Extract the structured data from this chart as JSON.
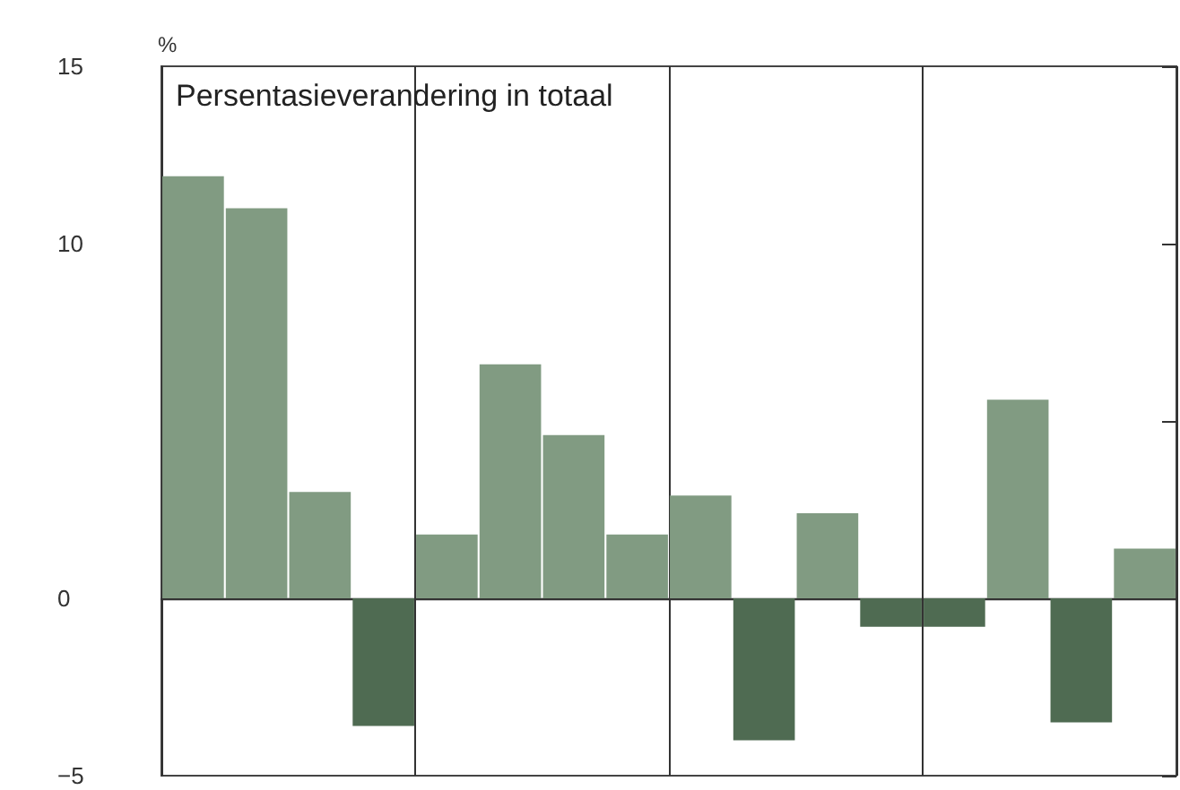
{
  "chart_data": {
    "type": "bar",
    "title": "Persentasieverandering in totaal",
    "ylabel": "%",
    "categories": [
      null,
      null,
      null,
      null,
      null,
      null,
      null,
      null,
      null,
      null,
      null,
      null,
      null,
      null,
      null,
      null
    ],
    "values": [
      11.9,
      11.0,
      3.0,
      -3.6,
      1.8,
      6.6,
      4.6,
      1.8,
      2.9,
      -4.0,
      2.4,
      -0.8,
      -0.8,
      5.6,
      -3.5,
      1.4
    ],
    "colors": [
      "#819b82",
      "#819b82",
      "#819b82",
      "#4f6b52",
      "#819b82",
      "#819b82",
      "#819b82",
      "#819b82",
      "#819b82",
      "#4f6b52",
      "#819b82",
      "#4f6b52",
      "#4f6b52",
      "#819b82",
      "#4f6b52",
      "#819b82"
    ],
    "ylim": [
      -5,
      15
    ],
    "yticks": [
      -5,
      0,
      {
        "value": 5,
        "label": null
      },
      10,
      15
    ],
    "grid": "x"
  }
}
